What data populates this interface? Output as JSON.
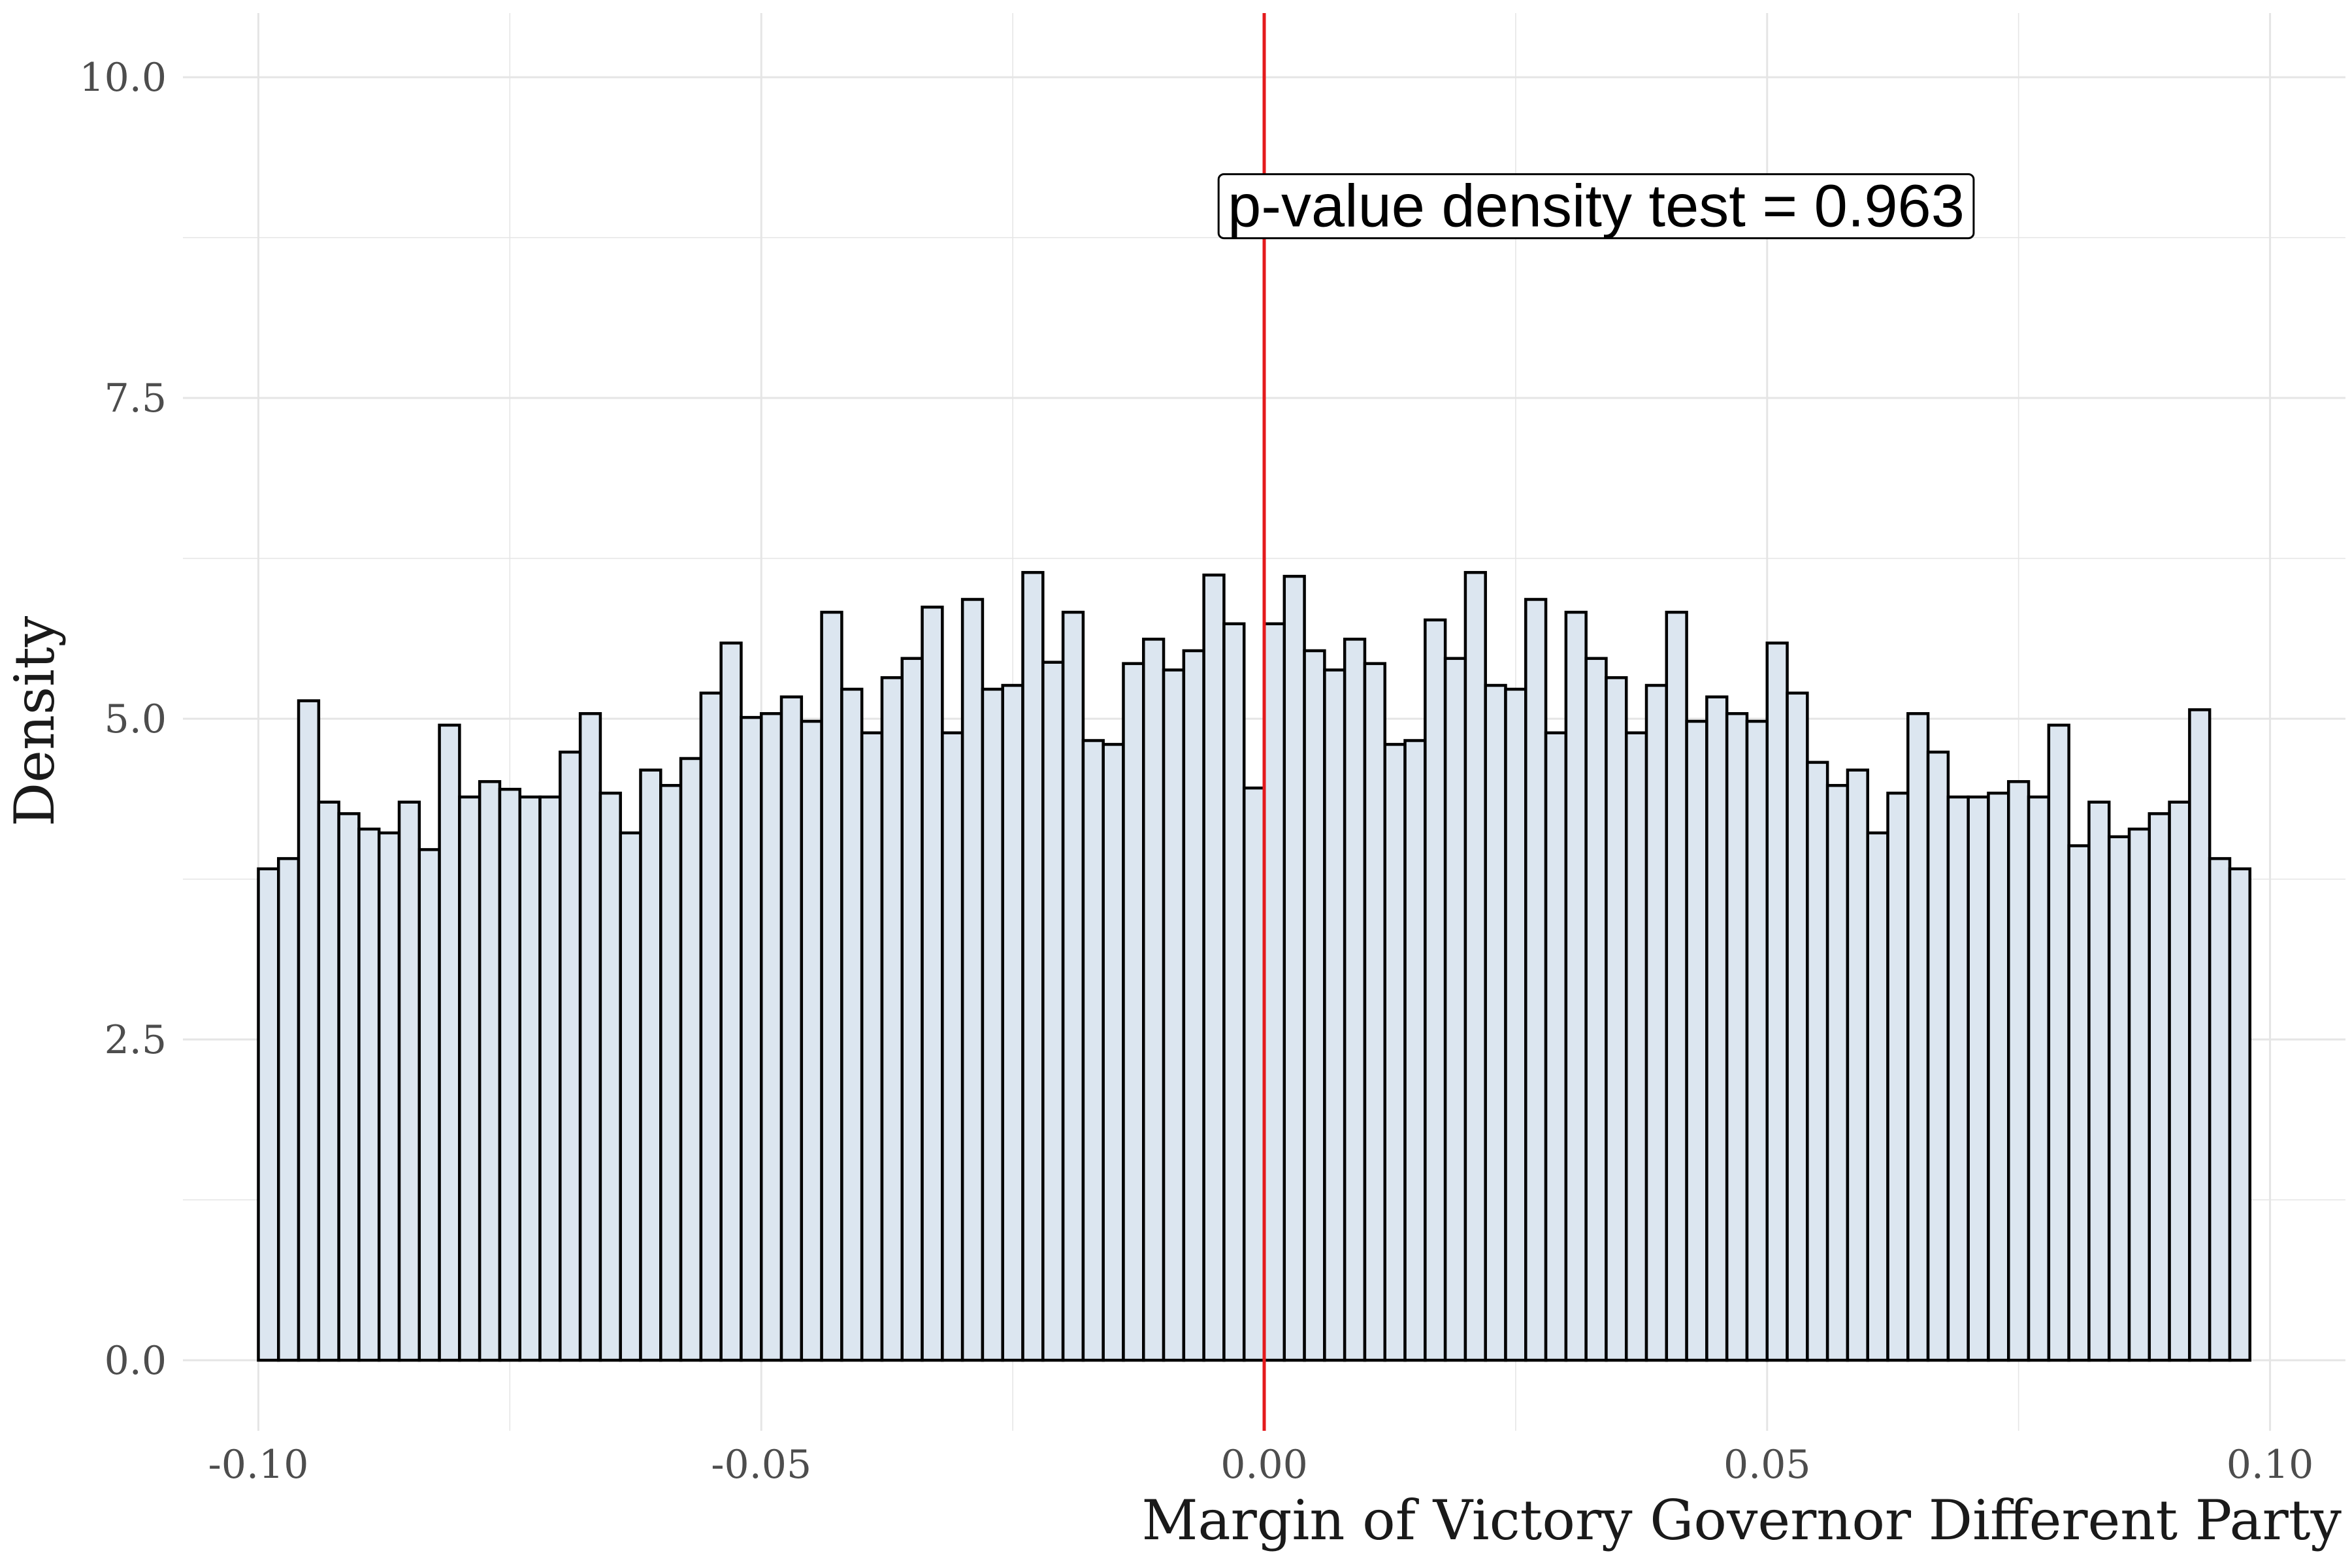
{
  "chart_data": {
    "type": "bar",
    "title": "",
    "xlabel": "Margin of Victory Governor Different Party",
    "ylabel": "Density",
    "xlim": [
      -0.1075,
      0.1075
    ],
    "ylim": [
      -0.55,
      10.5
    ],
    "x_ticks": [
      -0.1,
      -0.05,
      0.0,
      0.05,
      0.1
    ],
    "x_tick_labels": [
      "-0.10",
      "-0.05",
      "0.00",
      "0.05",
      "0.10"
    ],
    "y_ticks": [
      0.0,
      2.5,
      5.0,
      7.5,
      10.0
    ],
    "y_tick_labels": [
      "0.0",
      "2.5",
      "5.0",
      "7.5",
      "10.0"
    ],
    "grid": true,
    "bin_width": 0.002,
    "bin_start": -0.1,
    "values": [
      3.83,
      3.91,
      5.14,
      4.35,
      4.26,
      4.14,
      4.11,
      4.35,
      3.98,
      4.95,
      4.39,
      4.51,
      4.45,
      4.39,
      4.39,
      4.74,
      5.04,
      4.42,
      4.11,
      4.6,
      4.48,
      4.69,
      5.2,
      5.59,
      5.01,
      5.04,
      5.17,
      4.98,
      5.83,
      5.23,
      4.89,
      5.32,
      5.47,
      5.87,
      4.89,
      5.93,
      5.23,
      5.26,
      6.14,
      5.44,
      5.83,
      4.83,
      4.8,
      5.43,
      5.62,
      5.38,
      5.53,
      6.12,
      5.74,
      4.46,
      5.74,
      6.11,
      5.53,
      5.38,
      5.62,
      5.43,
      4.8,
      4.83,
      5.77,
      5.47,
      6.14,
      5.26,
      5.23,
      5.93,
      4.89,
      5.83,
      5.47,
      5.32,
      4.89,
      5.26,
      5.83,
      4.98,
      5.17,
      5.04,
      4.98,
      5.59,
      5.2,
      4.66,
      4.48,
      4.6,
      4.11,
      4.42,
      5.04,
      4.74,
      4.39,
      4.39,
      4.42,
      4.51,
      4.39,
      4.95,
      4.01,
      4.35,
      4.08,
      4.14,
      4.26,
      4.35,
      5.07,
      3.91,
      3.83
    ],
    "vline": {
      "x": 0.0,
      "color": "#e41a1c"
    },
    "annotation": {
      "text": "p-value density test =  0.963",
      "x": 0.033,
      "y": 9.0
    },
    "colors": {
      "bar_fill": "#dce6f0",
      "bar_stroke": "#000000",
      "grid": "#e5e5e5"
    }
  }
}
